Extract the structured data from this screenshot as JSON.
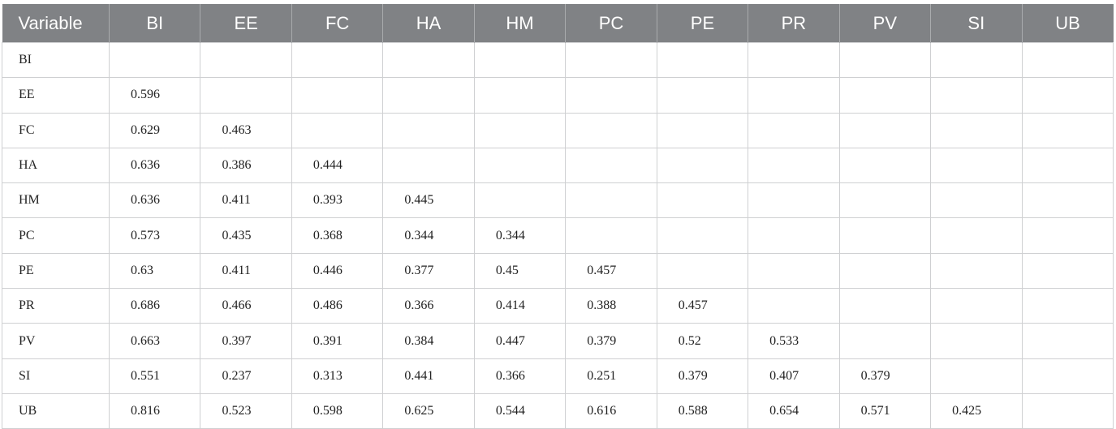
{
  "table": {
    "header": [
      "Variable",
      "BI",
      "EE",
      "FC",
      "HA",
      "HM",
      "PC",
      "PE",
      "PR",
      "PV",
      "SI",
      "UB"
    ],
    "rows": [
      {
        "label": "BI",
        "values": []
      },
      {
        "label": "EE",
        "values": [
          0.596
        ]
      },
      {
        "label": "FC",
        "values": [
          0.629,
          0.463
        ]
      },
      {
        "label": "HA",
        "values": [
          0.636,
          0.386,
          0.444
        ]
      },
      {
        "label": "HM",
        "values": [
          0.636,
          0.411,
          0.393,
          0.445
        ]
      },
      {
        "label": "PC",
        "values": [
          0.573,
          0.435,
          0.368,
          0.344,
          0.344
        ]
      },
      {
        "label": "PE",
        "values": [
          0.63,
          0.411,
          0.446,
          0.377,
          0.45,
          0.457
        ]
      },
      {
        "label": "PR",
        "values": [
          0.686,
          0.466,
          0.486,
          0.366,
          0.414,
          0.388,
          0.457
        ]
      },
      {
        "label": "PV",
        "values": [
          0.663,
          0.397,
          0.391,
          0.384,
          0.447,
          0.379,
          0.52,
          0.533
        ]
      },
      {
        "label": "SI",
        "values": [
          0.551,
          0.237,
          0.313,
          0.441,
          0.366,
          0.251,
          0.379,
          0.407,
          0.379
        ]
      },
      {
        "label": "UB",
        "values": [
          0.816,
          0.523,
          0.598,
          0.625,
          0.544,
          0.616,
          0.588,
          0.654,
          0.571,
          0.425
        ]
      }
    ]
  }
}
